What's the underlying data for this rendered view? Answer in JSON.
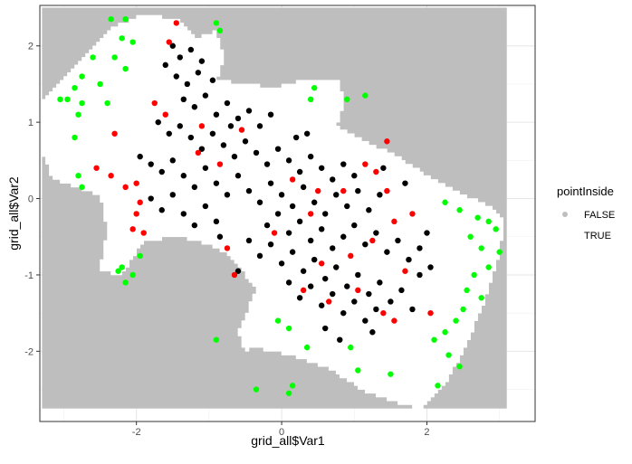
{
  "chart_data": {
    "type": "scatter",
    "xlabel": "grid_all$Var1",
    "ylabel": "grid_all$Var2",
    "xlim": [
      -3.33,
      3.49
    ],
    "ylim": [
      -2.92,
      2.53
    ],
    "x_ticks": [
      -2,
      0,
      2
    ],
    "y_ticks": [
      -2,
      -1,
      0,
      1,
      2
    ],
    "x_tick_labels": [
      "-2",
      "0",
      "2"
    ],
    "y_tick_labels": [
      "-2",
      "-1",
      "0",
      "1",
      "2"
    ],
    "grid": true,
    "legend": {
      "title": "pointInside",
      "placement": "right",
      "entries": [
        {
          "label": "FALSE",
          "color": "#bebebe"
        },
        {
          "label": "TRUE",
          "color": "#ffffff"
        }
      ]
    },
    "background_grid": {
      "x_range": [
        -3.3,
        3.1
      ],
      "y_range": [
        -2.75,
        2.5
      ],
      "false_color": "#bebebe",
      "true_color": "#ffffff",
      "inside_region_polygon": [
        [
          -3.3,
          1.3
        ],
        [
          -2.9,
          1.65
        ],
        [
          -2.6,
          2.0
        ],
        [
          -2.3,
          2.25
        ],
        [
          -1.95,
          2.4
        ],
        [
          -1.4,
          2.35
        ],
        [
          -1.2,
          2.1
        ],
        [
          -0.9,
          2.2
        ],
        [
          -0.8,
          1.85
        ],
        [
          -0.9,
          1.55
        ],
        [
          -0.5,
          1.5
        ],
        [
          -0.1,
          1.45
        ],
        [
          0.3,
          1.55
        ],
        [
          0.55,
          1.55
        ],
        [
          0.8,
          1.55
        ],
        [
          0.85,
          1.2
        ],
        [
          0.75,
          0.95
        ],
        [
          1.25,
          0.7
        ],
        [
          1.6,
          0.55
        ],
        [
          2.0,
          0.3
        ],
        [
          2.5,
          0.05
        ],
        [
          2.85,
          -0.1
        ],
        [
          3.05,
          -0.3
        ],
        [
          3.0,
          -0.75
        ],
        [
          2.75,
          -1.45
        ],
        [
          2.5,
          -2.0
        ],
        [
          2.2,
          -2.5
        ],
        [
          1.9,
          -2.75
        ],
        [
          1.5,
          -2.65
        ],
        [
          1.1,
          -2.5
        ],
        [
          0.6,
          -2.2
        ],
        [
          0.1,
          -2.05
        ],
        [
          -0.35,
          -1.95
        ],
        [
          -0.5,
          -2.0
        ],
        [
          -0.6,
          -1.75
        ],
        [
          -0.35,
          -1.2
        ],
        [
          -0.7,
          -0.75
        ],
        [
          -1.0,
          -0.6
        ],
        [
          -1.4,
          -0.5
        ],
        [
          -1.9,
          -0.55
        ],
        [
          -2.2,
          -1.0
        ],
        [
          -2.5,
          -0.95
        ],
        [
          -2.4,
          -0.4
        ],
        [
          -2.5,
          0.05
        ],
        [
          -2.85,
          0.15
        ],
        [
          -3.15,
          0.25
        ],
        [
          -3.3,
          0.6
        ]
      ]
    },
    "series": [
      {
        "color": "#000000",
        "points": [
          [
            -1.5,
            2.0
          ],
          [
            -1.4,
            1.85
          ],
          [
            -1.25,
            1.95
          ],
          [
            -1.1,
            1.8
          ],
          [
            -1.45,
            1.6
          ],
          [
            -1.3,
            1.5
          ],
          [
            -1.15,
            1.65
          ],
          [
            -0.95,
            1.55
          ],
          [
            -1.35,
            1.3
          ],
          [
            -1.2,
            1.2
          ],
          [
            -1.05,
            1.35
          ],
          [
            -0.9,
            1.1
          ],
          [
            -0.75,
            1.25
          ],
          [
            -0.6,
            1.05
          ],
          [
            -0.45,
            1.15
          ],
          [
            -0.3,
            0.95
          ],
          [
            -0.15,
            1.1
          ],
          [
            -1.7,
            1.0
          ],
          [
            -1.55,
            0.85
          ],
          [
            -1.4,
            0.95
          ],
          [
            -1.25,
            0.8
          ],
          [
            -1.1,
            0.65
          ],
          [
            -0.95,
            0.85
          ],
          [
            -0.8,
            0.7
          ],
          [
            -0.65,
            0.55
          ],
          [
            -0.5,
            0.75
          ],
          [
            -0.35,
            0.6
          ],
          [
            -0.2,
            0.45
          ],
          [
            -0.05,
            0.65
          ],
          [
            0.1,
            0.5
          ],
          [
            0.25,
            0.35
          ],
          [
            0.4,
            0.55
          ],
          [
            0.55,
            0.4
          ],
          [
            0.7,
            0.25
          ],
          [
            0.85,
            0.45
          ],
          [
            1.0,
            0.3
          ],
          [
            -1.95,
            0.55
          ],
          [
            -1.8,
            0.45
          ],
          [
            -1.65,
            0.35
          ],
          [
            -1.5,
            0.5
          ],
          [
            -1.35,
            0.3
          ],
          [
            -1.2,
            0.15
          ],
          [
            -1.05,
            0.4
          ],
          [
            -0.9,
            0.2
          ],
          [
            -0.75,
            0.05
          ],
          [
            -0.6,
            0.3
          ],
          [
            -0.45,
            0.1
          ],
          [
            -0.3,
            -0.05
          ],
          [
            -0.15,
            0.2
          ],
          [
            0.0,
            0.05
          ],
          [
            0.15,
            -0.1
          ],
          [
            0.3,
            0.15
          ],
          [
            0.45,
            -0.05
          ],
          [
            0.6,
            -0.2
          ],
          [
            0.75,
            0.05
          ],
          [
            0.9,
            -0.1
          ],
          [
            1.05,
            0.1
          ],
          [
            1.2,
            -0.15
          ],
          [
            1.35,
            0.05
          ],
          [
            -1.8,
            0.0
          ],
          [
            -1.65,
            -0.15
          ],
          [
            -1.5,
            0.05
          ],
          [
            -1.35,
            -0.2
          ],
          [
            -1.2,
            -0.35
          ],
          [
            -1.05,
            -0.1
          ],
          [
            -0.9,
            -0.3
          ],
          [
            -0.2,
            -0.35
          ],
          [
            -0.05,
            -0.2
          ],
          [
            0.1,
            -0.45
          ],
          [
            0.25,
            -0.3
          ],
          [
            0.4,
            -0.55
          ],
          [
            0.55,
            -0.4
          ],
          [
            0.7,
            -0.65
          ],
          [
            0.85,
            -0.5
          ],
          [
            1.0,
            -0.35
          ],
          [
            1.15,
            -0.6
          ],
          [
            1.3,
            -0.45
          ],
          [
            1.45,
            -0.7
          ],
          [
            1.6,
            -0.55
          ],
          [
            1.75,
            -0.8
          ],
          [
            1.9,
            -0.65
          ],
          [
            2.05,
            -0.9
          ],
          [
            -0.45,
            -0.55
          ],
          [
            -0.3,
            -0.75
          ],
          [
            -0.15,
            -0.6
          ],
          [
            0.0,
            -0.85
          ],
          [
            0.15,
            -0.7
          ],
          [
            0.3,
            -0.95
          ],
          [
            0.45,
            -0.8
          ],
          [
            0.6,
            -1.05
          ],
          [
            0.75,
            -0.9
          ],
          [
            0.9,
            -1.15
          ],
          [
            1.05,
            -1.0
          ],
          [
            1.2,
            -1.25
          ],
          [
            1.35,
            -1.1
          ],
          [
            1.5,
            -1.35
          ],
          [
            1.65,
            -1.2
          ],
          [
            1.8,
            -1.45
          ],
          [
            0.1,
            -1.1
          ],
          [
            0.25,
            -1.3
          ],
          [
            0.4,
            -1.15
          ],
          [
            0.55,
            -1.4
          ],
          [
            0.7,
            -1.25
          ],
          [
            0.85,
            -1.5
          ],
          [
            1.0,
            -1.35
          ],
          [
            1.15,
            -1.6
          ],
          [
            1.3,
            -1.45
          ],
          [
            0.6,
            -1.7
          ],
          [
            0.8,
            -1.85
          ],
          [
            1.25,
            -1.75
          ],
          [
            -1.6,
            1.75
          ],
          [
            -0.7,
            0.95
          ],
          [
            0.2,
            0.8
          ],
          [
            1.4,
            0.4
          ],
          [
            1.7,
            0.2
          ],
          [
            -0.6,
            -0.95
          ],
          [
            -0.85,
            -0.5
          ],
          [
            2.0,
            -0.45
          ],
          [
            1.9,
            -1.0
          ],
          [
            0.35,
            0.85
          ]
        ]
      },
      {
        "color": "#ff0000",
        "points": [
          [
            -1.45,
            2.3
          ],
          [
            -1.55,
            2.05
          ],
          [
            -1.75,
            1.25
          ],
          [
            -1.6,
            1.1
          ],
          [
            -2.3,
            0.85
          ],
          [
            -2.55,
            0.4
          ],
          [
            -2.35,
            0.3
          ],
          [
            -2.15,
            0.15
          ],
          [
            -2.0,
            0.2
          ],
          [
            -1.95,
            -0.05
          ],
          [
            -2.0,
            -0.2
          ],
          [
            -2.05,
            -0.4
          ],
          [
            -1.9,
            -0.45
          ],
          [
            -1.15,
            0.6
          ],
          [
            -0.85,
            0.45
          ],
          [
            -0.55,
            0.9
          ],
          [
            0.15,
            0.25
          ],
          [
            0.5,
            0.1
          ],
          [
            1.3,
            0.35
          ],
          [
            1.45,
            0.1
          ],
          [
            1.55,
            -0.3
          ],
          [
            1.25,
            -0.55
          ],
          [
            0.95,
            -0.75
          ],
          [
            0.55,
            -0.85
          ],
          [
            0.3,
            -1.2
          ],
          [
            0.65,
            -1.35
          ],
          [
            1.05,
            -1.2
          ],
          [
            1.4,
            -1.5
          ],
          [
            1.55,
            -1.6
          ],
          [
            -0.65,
            -1.0
          ],
          [
            -0.75,
            -0.65
          ],
          [
            -0.1,
            -0.45
          ],
          [
            0.4,
            -0.2
          ],
          [
            0.85,
            0.1
          ],
          [
            1.15,
            0.45
          ],
          [
            1.45,
            0.75
          ],
          [
            1.7,
            -0.95
          ],
          [
            2.05,
            -1.5
          ],
          [
            1.8,
            -0.2
          ],
          [
            -1.1,
            0.95
          ]
        ]
      },
      {
        "color": "#00ff00",
        "points": [
          [
            -2.35,
            2.35
          ],
          [
            -2.15,
            2.35
          ],
          [
            -2.2,
            2.1
          ],
          [
            -2.05,
            2.05
          ],
          [
            -2.3,
            1.85
          ],
          [
            -2.15,
            1.7
          ],
          [
            -2.6,
            1.85
          ],
          [
            -2.75,
            1.6
          ],
          [
            -2.85,
            1.45
          ],
          [
            -2.5,
            1.5
          ],
          [
            -2.95,
            1.3
          ],
          [
            -3.05,
            1.3
          ],
          [
            -2.75,
            1.25
          ],
          [
            -2.4,
            1.25
          ],
          [
            -2.8,
            1.1
          ],
          [
            -2.85,
            0.8
          ],
          [
            -2.75,
            0.15
          ],
          [
            -2.8,
            0.3
          ],
          [
            -2.2,
            -0.9
          ],
          [
            -2.05,
            -1.0
          ],
          [
            -2.15,
            -1.1
          ],
          [
            -1.95,
            -0.75
          ],
          [
            -2.25,
            -0.95
          ],
          [
            -0.85,
            2.2
          ],
          [
            -0.9,
            2.3
          ],
          [
            0.45,
            1.45
          ],
          [
            0.4,
            1.3
          ],
          [
            1.15,
            1.35
          ],
          [
            0.9,
            1.3
          ],
          [
            2.25,
            -0.05
          ],
          [
            2.45,
            -0.15
          ],
          [
            2.7,
            -0.25
          ],
          [
            2.85,
            -0.3
          ],
          [
            2.6,
            -0.5
          ],
          [
            2.75,
            -0.65
          ],
          [
            2.95,
            -0.4
          ],
          [
            3.0,
            -0.7
          ],
          [
            2.85,
            -0.9
          ],
          [
            2.65,
            -1.0
          ],
          [
            2.55,
            -1.2
          ],
          [
            2.75,
            -1.3
          ],
          [
            2.5,
            -1.45
          ],
          [
            2.4,
            -1.6
          ],
          [
            2.25,
            -1.75
          ],
          [
            2.1,
            -1.85
          ],
          [
            2.3,
            -2.05
          ],
          [
            2.45,
            -2.2
          ],
          [
            2.15,
            -2.45
          ],
          [
            -0.05,
            -1.6
          ],
          [
            0.1,
            -1.7
          ],
          [
            0.35,
            -1.95
          ],
          [
            0.95,
            -1.95
          ],
          [
            1.05,
            -2.25
          ],
          [
            1.5,
            -2.3
          ],
          [
            0.1,
            -2.55
          ],
          [
            -0.35,
            -2.5
          ],
          [
            -0.9,
            -1.85
          ],
          [
            0.15,
            -2.45
          ]
        ]
      }
    ]
  }
}
